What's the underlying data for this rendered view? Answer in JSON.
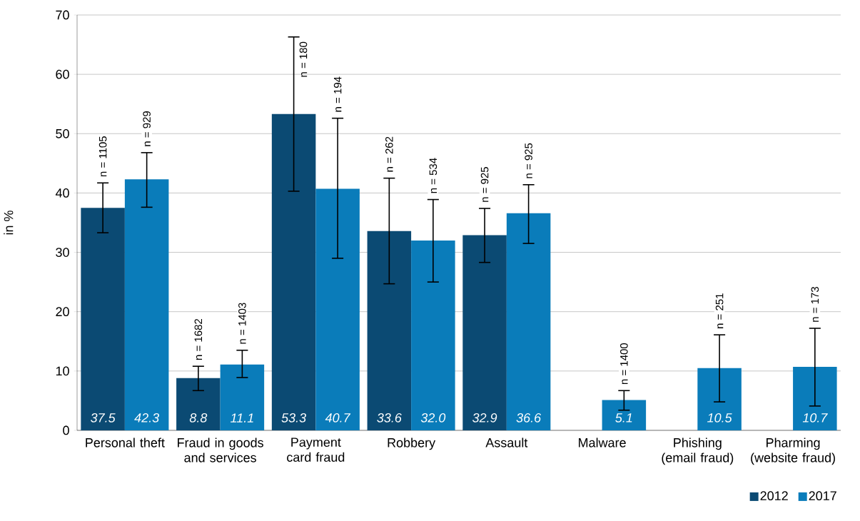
{
  "chart_data": {
    "type": "bar",
    "ylabel": "in %",
    "categories": [
      "Personal theft",
      "Fraud in goods and services",
      "Payment card fraud",
      "Robbery",
      "Assault",
      "Malware",
      "Phishing (email fraud)",
      "Pharming (website fraud)"
    ],
    "series": [
      {
        "name": "2012",
        "color": "#0b4a73",
        "values": [
          37.5,
          8.8,
          53.3,
          33.6,
          32.9,
          null,
          null,
          null
        ],
        "value_labels": [
          "37.5",
          "8.8",
          "53.3",
          "33.6",
          "32.9",
          null,
          null,
          null
        ],
        "errors": [
          [
            33.3,
            41.7
          ],
          [
            6.7,
            10.8
          ],
          [
            40.3,
            66.3
          ],
          [
            24.7,
            42.5
          ],
          [
            28.3,
            37.4
          ],
          null,
          null,
          null
        ]
      },
      {
        "name": "2017",
        "color": "#0a7cba",
        "values": [
          42.3,
          11.1,
          40.7,
          32.0,
          36.6,
          5.1,
          10.5,
          10.7
        ],
        "value_labels": [
          "42.3",
          "11.1",
          "40.7",
          "32.0",
          "36.6",
          "5.1",
          "10.5",
          "10.7"
        ],
        "errors": [
          [
            37.6,
            46.8
          ],
          [
            8.9,
            13.5
          ],
          [
            29.0,
            52.6
          ],
          [
            25.0,
            38.9
          ],
          [
            31.5,
            41.4
          ],
          [
            3.4,
            6.7
          ],
          [
            4.8,
            16.1
          ],
          [
            4.1,
            17.2
          ]
        ]
      }
    ],
    "ylim": [
      0,
      70
    ],
    "yticks": [
      0,
      10,
      20,
      30,
      40,
      50,
      60,
      70
    ],
    "grid": "y",
    "legend": "bottom right",
    "annotations": [
      "n = 1105",
      "n = 929",
      "n = 1682",
      "n = 1403",
      "n = 180",
      "n = 194",
      "n = 262",
      "n = 534",
      "n = 925",
      "n = 925",
      "n = 1400",
      "n = 251",
      "n = 173"
    ]
  }
}
